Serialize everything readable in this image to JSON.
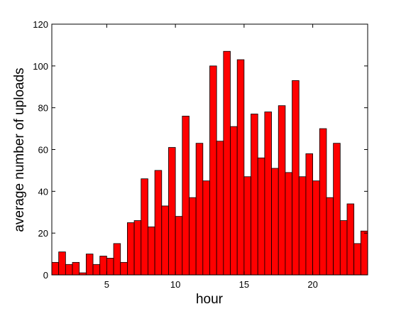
{
  "chart_data": {
    "type": "histogram",
    "x_label": "hour",
    "y_label": "average number of uploads",
    "bins": [
      1,
      1.5,
      2,
      2.5,
      3,
      3.5,
      4,
      4.5,
      5,
      5.5,
      6,
      6.5,
      7,
      7.5,
      8,
      8.5,
      9,
      9.5,
      10,
      10.5,
      11,
      11.5,
      12,
      12.5,
      13,
      13.5,
      14,
      14.5,
      15,
      15.5,
      16,
      16.5,
      17,
      17.5,
      18,
      18.5,
      19,
      19.5,
      20,
      20.5,
      21,
      21.5,
      22,
      22.5,
      23,
      23.5,
      24
    ],
    "counts": [
      6,
      11,
      5,
      6,
      1,
      10,
      5,
      9,
      8,
      15,
      6,
      25,
      26,
      46,
      23,
      50,
      33,
      61,
      28,
      76,
      37,
      63,
      45,
      100,
      64,
      107,
      71,
      103,
      47,
      77,
      56,
      78,
      51,
      81,
      49,
      93,
      47,
      58,
      45,
      70,
      37,
      63,
      26,
      34,
      15,
      21
    ],
    "color": "#ff0000",
    "xlim": [
      1,
      24
    ],
    "xticks": [
      5,
      10,
      15,
      20
    ],
    "ylim": [
      0,
      120
    ],
    "yticks": [
      0,
      20,
      40,
      60,
      80,
      100,
      120
    ]
  }
}
